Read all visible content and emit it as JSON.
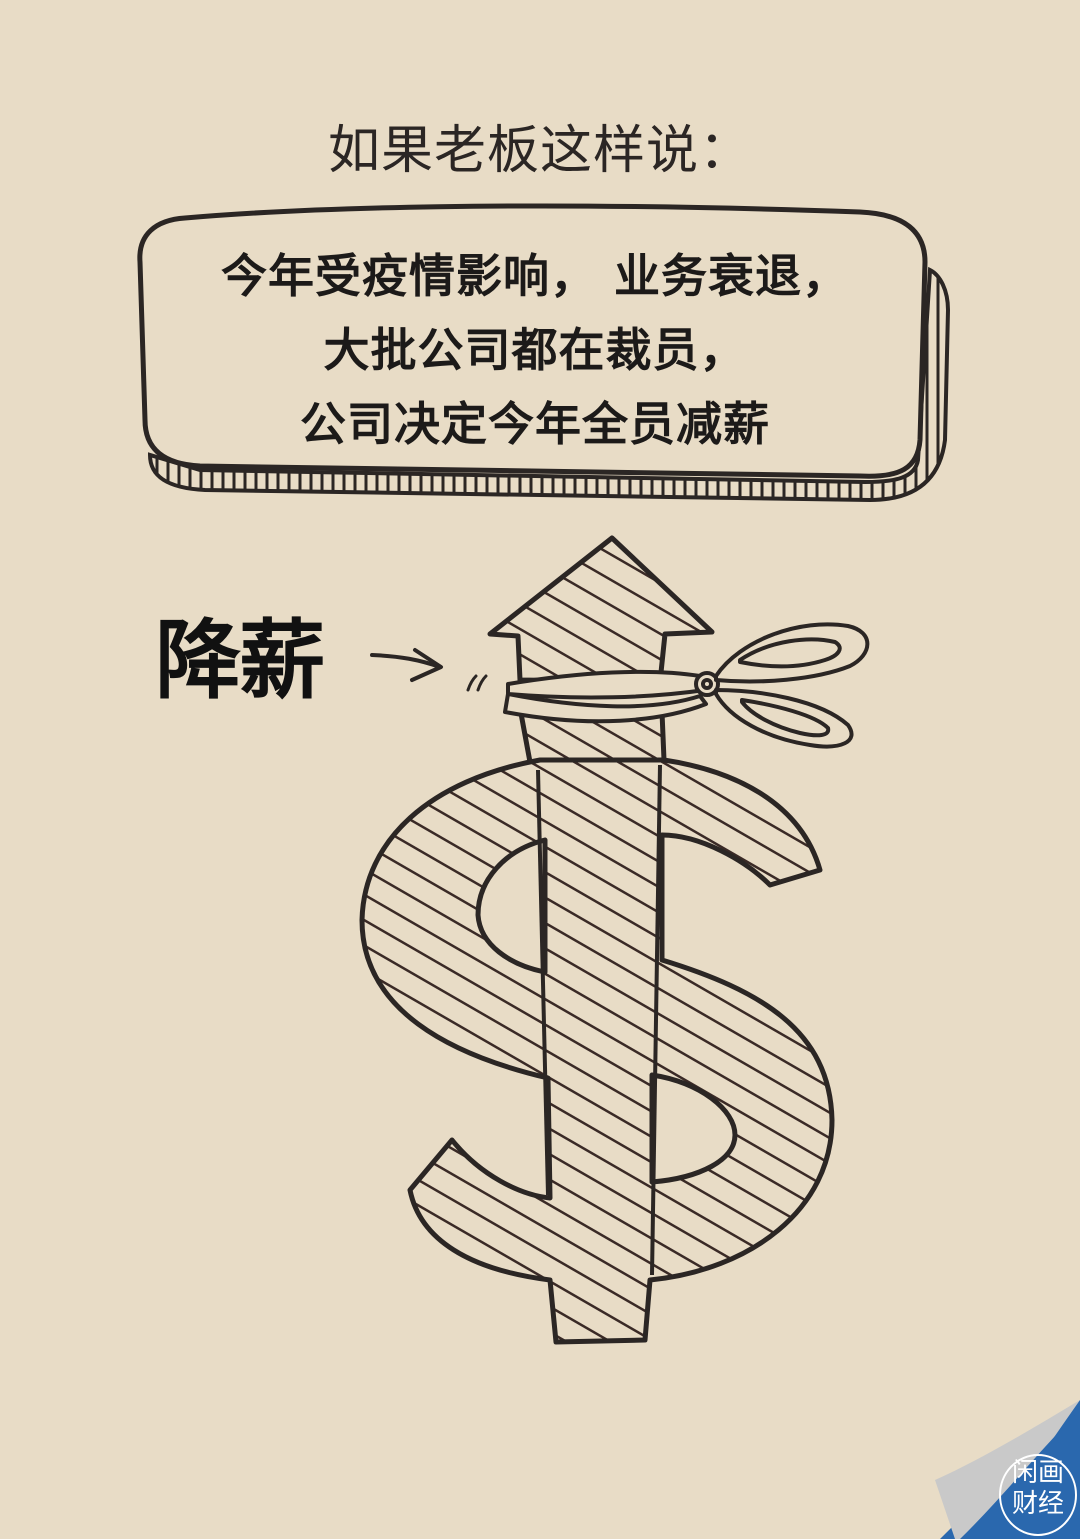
{
  "heading": "如果老板这样说：",
  "speech_bubble": {
    "lines": [
      "今年受疫情影响，  业务衰退，",
      "大批公司都在裁员，",
      "公司决定今年全员减薪"
    ]
  },
  "label": "降薪",
  "illustration": {
    "symbol": "dollar-sign-with-arrow",
    "tool": "scissors-icon"
  },
  "corner_badge": {
    "line1": "闲画",
    "line2": "财经",
    "color": "#2a68ae"
  },
  "colors": {
    "background": "#e8dcc6",
    "ink": "#2b2624"
  }
}
